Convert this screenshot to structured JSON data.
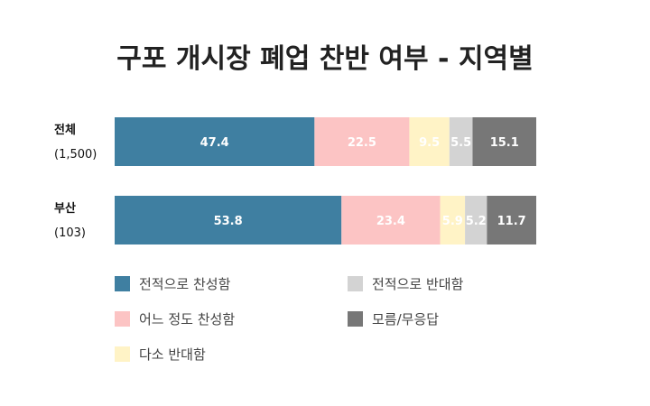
{
  "chart_data": {
    "type": "bar",
    "orientation": "horizontal",
    "stacked": true,
    "title": "구포 개시장 폐업 찬반 여부 - 지역별",
    "categories": [
      {
        "label": "전체",
        "n": "(1,500)"
      },
      {
        "label": "부산",
        "n": "(103)"
      }
    ],
    "series": [
      {
        "name": "전적으로 찬성함",
        "color": "#3f7fa1",
        "values": [
          47.4,
          53.8
        ],
        "labels": [
          "47.4",
          "53.8"
        ]
      },
      {
        "name": "어느 정도 찬성함",
        "color": "#fcc4c4",
        "values": [
          22.5,
          23.4
        ],
        "labels": [
          "22.5",
          "23.4"
        ]
      },
      {
        "name": "다소 반대함",
        "color": "#fff3c6",
        "values": [
          9.5,
          5.9
        ],
        "labels": [
          "9.5",
          "5.9"
        ]
      },
      {
        "name": "전적으로 반대함",
        "color": "#d3d3d3",
        "values": [
          5.5,
          5.2
        ],
        "labels": [
          "5.5",
          "5.2"
        ]
      },
      {
        "name": "모름/무응답",
        "color": "#777777",
        "values": [
          15.1,
          11.7
        ],
        "labels": [
          "15.1",
          "11.7"
        ]
      }
    ],
    "xlim": [
      0,
      100
    ],
    "grid": false,
    "legend_position": "bottom"
  }
}
